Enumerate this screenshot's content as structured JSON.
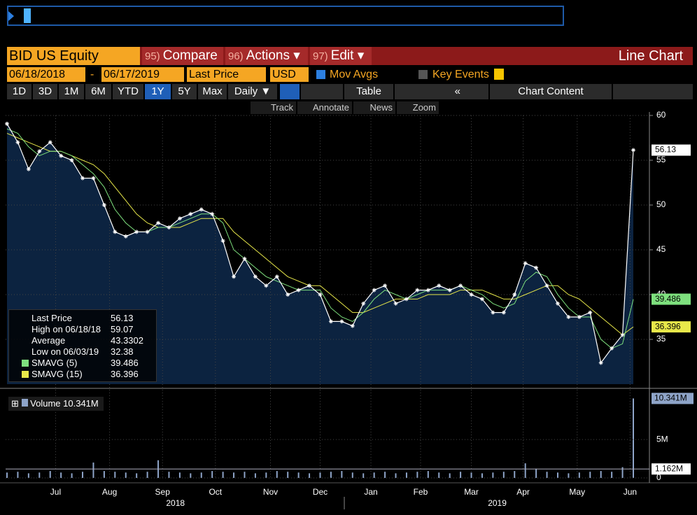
{
  "header": {
    "security": "BID US Equity",
    "tabs": [
      {
        "num": "95)",
        "label": "Compare"
      },
      {
        "num": "96)",
        "label": "Actions ▾"
      },
      {
        "num": "97)",
        "label": "Edit ▾"
      }
    ],
    "view": "Line Chart"
  },
  "controls": {
    "start_date": "06/18/2018",
    "dash": "-",
    "end_date": "06/17/2019",
    "field": "Last Price",
    "currency": "USD",
    "mov_avgs": "Mov Avgs",
    "key_events": "Key Events",
    "periods": [
      "1D",
      "3D",
      "1M",
      "6M",
      "YTD",
      "1Y",
      "5Y",
      "Max"
    ],
    "selected_period": "1Y",
    "frequency": "Daily ▼",
    "table": "Table",
    "back": "«",
    "chart_content": "Chart Content",
    "tools": [
      "Track",
      "Annotate",
      "News",
      "Zoom"
    ]
  },
  "legend": {
    "high_label": "High on 06/18/18",
    "average_label": "Average",
    "average": 43.3302,
    "low_label": "Low on 06/03/19"
  },
  "chart_data": {
    "type": "line",
    "xlim": [
      0,
      58
    ],
    "ylim": [
      30,
      60
    ],
    "yticks": [
      35,
      40,
      45,
      50,
      55,
      60
    ],
    "grid": true,
    "xticks": [
      {
        "value": 4.5,
        "label": "Jul"
      },
      {
        "value": 9.5,
        "label": "Aug"
      },
      {
        "value": 14.4,
        "label": "Sep"
      },
      {
        "value": 19.3,
        "label": "Oct"
      },
      {
        "value": 24.4,
        "label": "Nov"
      },
      {
        "value": 29.0,
        "label": "Dec"
      },
      {
        "value": 33.7,
        "label": "Jan"
      },
      {
        "value": 38.3,
        "label": "Feb"
      },
      {
        "value": 43.0,
        "label": "Mar"
      },
      {
        "value": 47.8,
        "label": "Apr"
      },
      {
        "value": 52.8,
        "label": "May"
      },
      {
        "value": 57.7,
        "label": "Jun"
      }
    ],
    "years": [
      {
        "value": 15.6,
        "label": "2018"
      },
      {
        "value": 45.4,
        "label": "2019"
      }
    ],
    "series": [
      {
        "name": "Last Price",
        "color": "#ffffff",
        "values": [
          59.07,
          57,
          54,
          56,
          57,
          55.5,
          55,
          53,
          53,
          50,
          47,
          46.5,
          47,
          47,
          48,
          47.5,
          48.5,
          49,
          49.5,
          49,
          46,
          42,
          44,
          42,
          41,
          42,
          40,
          40.5,
          41,
          40,
          37,
          37,
          36.5,
          39,
          40.5,
          41,
          39,
          39.5,
          40.5,
          40.5,
          41,
          40.5,
          41,
          40,
          39.5,
          38,
          38,
          40,
          43.5,
          43,
          41,
          39,
          37.5,
          37.5,
          38,
          32.38,
          34,
          35.5,
          56.13
        ]
      },
      {
        "name": "SMAVG (5)",
        "color": "#7ee07e",
        "values": [
          58.5,
          58,
          56.5,
          55.5,
          56,
          56,
          55.5,
          54.5,
          53.5,
          52,
          49.5,
          48,
          47,
          47,
          47.5,
          47.5,
          48,
          48.5,
          49,
          49,
          48,
          45,
          44,
          43,
          42,
          41.5,
          41,
          40.5,
          40.5,
          40.5,
          38.5,
          37.5,
          37,
          38,
          39.5,
          40.5,
          40,
          39.5,
          40,
          40.5,
          40.5,
          40.5,
          41,
          40.5,
          40,
          39,
          38.5,
          39,
          41.5,
          42.5,
          42,
          40,
          38.5,
          37.5,
          37.5,
          35,
          34,
          34.5,
          39.486
        ]
      },
      {
        "name": "SMAVG (15)",
        "color": "#e8e84a",
        "values": [
          58,
          57.5,
          57,
          56.5,
          56,
          56,
          55.5,
          55,
          54.5,
          53.5,
          52,
          50.5,
          49,
          48,
          47.5,
          47.5,
          47.5,
          48,
          48.5,
          48.5,
          48.5,
          47,
          46,
          45,
          44,
          43,
          42,
          41.5,
          41,
          41,
          40,
          39,
          38,
          38,
          38.5,
          39,
          39.5,
          39.5,
          39.5,
          40,
          40,
          40,
          40.5,
          40.5,
          40.5,
          40,
          39.5,
          39.5,
          40,
          40.5,
          41,
          41,
          40,
          39.5,
          38.5,
          37.5,
          36.5,
          35.5,
          36.396
        ]
      }
    ],
    "volume": {
      "name": "Volume",
      "color": "#8ea4c8",
      "ylim": [
        0,
        11.2
      ],
      "yticks": [
        0,
        {
          "value": 5,
          "label": "5M"
        }
      ],
      "last_value_label": "10.341M",
      "average": 1.162,
      "average_label": "1.162M",
      "values": [
        0.7,
        0.8,
        0.6,
        0.7,
        0.9,
        0.7,
        0.6,
        0.8,
        2.0,
        0.9,
        0.8,
        0.7,
        0.6,
        0.8,
        2.3,
        0.8,
        0.7,
        0.6,
        0.7,
        0.9,
        0.8,
        0.7,
        0.8,
        0.6,
        0.7,
        0.9,
        0.8,
        0.7,
        0.6,
        0.7,
        0.8,
        0.9,
        0.7,
        0.6,
        0.7,
        0.8,
        0.6,
        0.7,
        0.8,
        0.9,
        0.7,
        0.6,
        0.8,
        0.7,
        0.6,
        0.7,
        0.8,
        0.9,
        1.9,
        1.2,
        0.8,
        0.7,
        0.6,
        0.7,
        0.8,
        0.9,
        0.8,
        1.4,
        10.341
      ]
    }
  }
}
